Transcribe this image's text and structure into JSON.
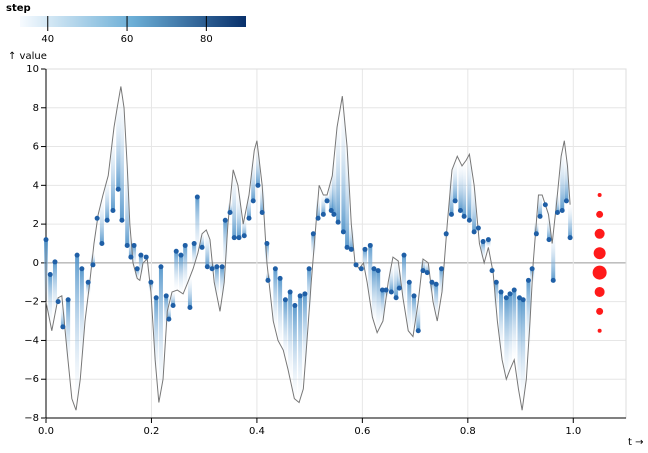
{
  "chart_data": {
    "type": "line-dot",
    "x_label": "t →",
    "y_label": "↑ value",
    "legend": {
      "title": "step",
      "domain": [
        33,
        90
      ],
      "ticks": [
        40,
        60,
        80
      ],
      "colors": [
        "#f7fbff",
        "#08306b"
      ]
    },
    "xlim": [
      0,
      1.1
    ],
    "xticks": [
      {
        "value": 0,
        "label": "0.0"
      },
      0.2,
      0.4,
      0.6,
      0.8,
      {
        "value": 1,
        "label": "1.0"
      }
    ],
    "ylim": [
      -8,
      10
    ],
    "yticks": [
      {
        "value": -8,
        "label": "−8"
      },
      {
        "value": -6,
        "label": "−6"
      },
      {
        "value": -4,
        "label": "−4"
      },
      {
        "value": -2,
        "label": "−2"
      },
      0,
      2,
      4,
      6,
      8,
      10
    ],
    "grid": true,
    "line": {
      "color": "#777777",
      "x": [
        0,
        0.011,
        0.023,
        0.03,
        0.038,
        0.049,
        0.057,
        0.065,
        0.074,
        0.083,
        0.091,
        0.099,
        0.108,
        0.118,
        0.129,
        0.135,
        0.142,
        0.148,
        0.154,
        0.159,
        0.165,
        0.173,
        0.178,
        0.184,
        0.192,
        0.199,
        0.207,
        0.214,
        0.222,
        0.23,
        0.239,
        0.249,
        0.26,
        0.269,
        0.279,
        0.288,
        0.296,
        0.304,
        0.311,
        0.319,
        0.33,
        0.338,
        0.345,
        0.355,
        0.364,
        0.374,
        0.385,
        0.395,
        0.4,
        0.41,
        0.419,
        0.431,
        0.44,
        0.45,
        0.459,
        0.471,
        0.48,
        0.488,
        0.495,
        0.503,
        0.512,
        0.518,
        0.526,
        0.533,
        0.543,
        0.552,
        0.562,
        0.571,
        0.579,
        0.586,
        0.594,
        0.602,
        0.609,
        0.619,
        0.628,
        0.639,
        0.649,
        0.658,
        0.668,
        0.677,
        0.687,
        0.696,
        0.706,
        0.715,
        0.725,
        0.734,
        0.742,
        0.751,
        0.761,
        0.77,
        0.78,
        0.789,
        0.797,
        0.803,
        0.812,
        0.822,
        0.831,
        0.839,
        0.848,
        0.856,
        0.865,
        0.873,
        0.88,
        0.888,
        0.896,
        0.903,
        0.911,
        0.918,
        0.924,
        0.934,
        0.941,
        0.953,
        0.96,
        0.968,
        0.977,
        0.983,
        0.989,
        0.994
      ],
      "values": [
        -2,
        -3.5,
        -1.8,
        -1.7,
        -4,
        -7,
        -7.6,
        -6,
        -3,
        -1,
        1,
        2.5,
        3.5,
        4.5,
        7,
        8,
        9.1,
        8,
        5,
        2,
        0,
        -0.8,
        -0.9,
        0,
        0.2,
        -1.5,
        -5,
        -7.2,
        -6,
        -2.5,
        -1.5,
        -1.4,
        -1.6,
        -1,
        -0.3,
        0.5,
        1.5,
        1.7,
        1.2,
        -1,
        -2.5,
        -1,
        2,
        4.8,
        4,
        2,
        3.5,
        5.8,
        6.3,
        4,
        0,
        -3,
        -4,
        -4.5,
        -5.5,
        -7,
        -7.2,
        -6.5,
        -4,
        -1,
        2,
        4,
        3.5,
        3.5,
        4.5,
        7,
        8.6,
        6,
        2,
        0,
        -0.3,
        0,
        -1,
        -2.8,
        -3.6,
        -3,
        -1,
        0.3,
        0.1,
        -1.8,
        -3.5,
        -3.8,
        -2,
        0.2,
        0,
        -2,
        -3,
        -1.5,
        2,
        4.8,
        5.5,
        5,
        5.3,
        5.6,
        4,
        1,
        0,
        0.8,
        -0.5,
        -3,
        -5,
        -6,
        -5.5,
        -5,
        -6.5,
        -7.6,
        -6,
        -3,
        0,
        3.5,
        3.5,
        2.5,
        1,
        3,
        5.5,
        6.3,
        5,
        3
      ]
    },
    "dots": {
      "color": "#1f5fa6",
      "x": [
        0,
        0.008,
        0.017,
        0.023,
        0.032,
        0.042,
        0.059,
        0.068,
        0.08,
        0.089,
        0.097,
        0.106,
        0.116,
        0.127,
        0.137,
        0.144,
        0.154,
        0.161,
        0.167,
        0.173,
        0.18,
        0.19,
        0.199,
        0.209,
        0.218,
        0.228,
        0.233,
        0.241,
        0.247,
        0.256,
        0.264,
        0.273,
        0.281,
        0.287,
        0.296,
        0.306,
        0.315,
        0.324,
        0.334,
        0.34,
        0.349,
        0.357,
        0.366,
        0.376,
        0.385,
        0.393,
        0.402,
        0.41,
        0.419,
        0.421,
        0.435,
        0.444,
        0.454,
        0.463,
        0.472,
        0.482,
        0.491,
        0.499,
        0.507,
        0.516,
        0.526,
        0.533,
        0.541,
        0.546,
        0.554,
        0.564,
        0.571,
        0.579,
        0.588,
        0.598,
        0.605,
        0.615,
        0.622,
        0.63,
        0.638,
        0.645,
        0.655,
        0.664,
        0.67,
        0.679,
        0.689,
        0.698,
        0.706,
        0.715,
        0.723,
        0.732,
        0.74,
        0.75,
        0.759,
        0.769,
        0.776,
        0.786,
        0.793,
        0.803,
        0.812,
        0.82,
        0.829,
        0.839,
        0.846,
        0.854,
        0.863,
        0.873,
        0.88,
        0.888,
        0.898,
        0.905,
        0.915,
        0.922,
        0.93,
        0.937,
        0.947,
        0.954,
        0.962,
        0.97,
        0.979,
        0.987,
        0.994
      ],
      "values": [
        1.2,
        -0.6,
        0.05,
        -2,
        -3.3,
        -1.9,
        0.4,
        -0.3,
        -1,
        -0.1,
        2.3,
        1,
        2.2,
        2.7,
        3.8,
        2.2,
        0.9,
        0.3,
        0.9,
        -0.3,
        0.4,
        0.3,
        -1,
        -1.8,
        -0.2,
        -1.7,
        -2.9,
        -2.2,
        0.6,
        0.4,
        0.9,
        -2.3,
        1,
        3.4,
        0.8,
        -0.2,
        -0.3,
        -0.2,
        -0.2,
        2.2,
        2.6,
        1.3,
        1.3,
        1.4,
        2.3,
        3.2,
        4,
        2.6,
        1,
        -0.9,
        -0.3,
        -0.8,
        -1.9,
        -1.5,
        -2.2,
        -1.7,
        -1.6,
        -0.3,
        1.5,
        2.3,
        2.5,
        3.2,
        2.7,
        2.5,
        2.1,
        1.6,
        0.8,
        0.7,
        -0.1,
        -0.3,
        0.7,
        0.9,
        -0.3,
        -0.4,
        -1.4,
        -1.4,
        -1.5,
        -1.8,
        -1.3,
        0.4,
        -1,
        -1.7,
        -3.5,
        -0.4,
        -0.5,
        -1,
        -1.1,
        -0.3,
        1.5,
        2.5,
        3.2,
        2.7,
        2.4,
        2.2,
        1.6,
        1.8,
        1.1,
        1.2,
        -0.4,
        -1,
        -1.5,
        -1.8,
        -1.6,
        -1.4,
        -1.8,
        -1.9,
        -0.9,
        -0.3,
        1.5,
        2.4,
        3,
        1.2,
        -0.9,
        2.6,
        2.7,
        3.2,
        1.3
      ]
    },
    "red_dots": {
      "color": "#ff1a1a",
      "x": [
        1.05,
        1.05,
        1.05,
        1.05,
        1.05,
        1.05,
        1.05,
        1.05
      ],
      "values": [
        3.5,
        2.5,
        1.5,
        0.5,
        -0.5,
        -1.5,
        -2.5,
        -3.5
      ],
      "sizes": [
        2,
        3.5,
        5,
        6,
        7,
        5,
        3.5,
        2
      ]
    }
  }
}
